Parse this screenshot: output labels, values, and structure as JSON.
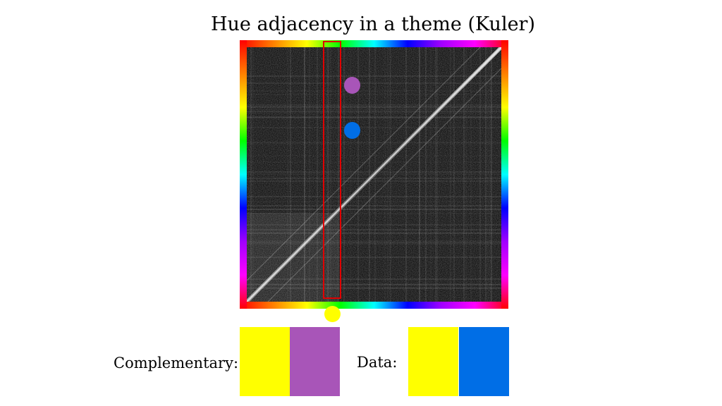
{
  "title": "Hue adjacency in a theme (Kuler)",
  "labels": {
    "complementary": "Complementary:",
    "data": "Data:"
  },
  "hue_gradient": [
    "#ff0000",
    "#ff8000",
    "#ffff00",
    "#00ff00",
    "#00ffff",
    "#0000ff",
    "#a000ff",
    "#ff00ff",
    "#ff0000"
  ],
  "markers": {
    "selected_hue": "#ffff00",
    "complementary_hue": "#a855b8",
    "data_hue": "#006ee6",
    "highlight": "#e00000"
  },
  "complementary_pair": [
    "#ffff00",
    "#a855b8"
  ],
  "data_pair": [
    "#ffff00",
    "#006ee6"
  ]
}
